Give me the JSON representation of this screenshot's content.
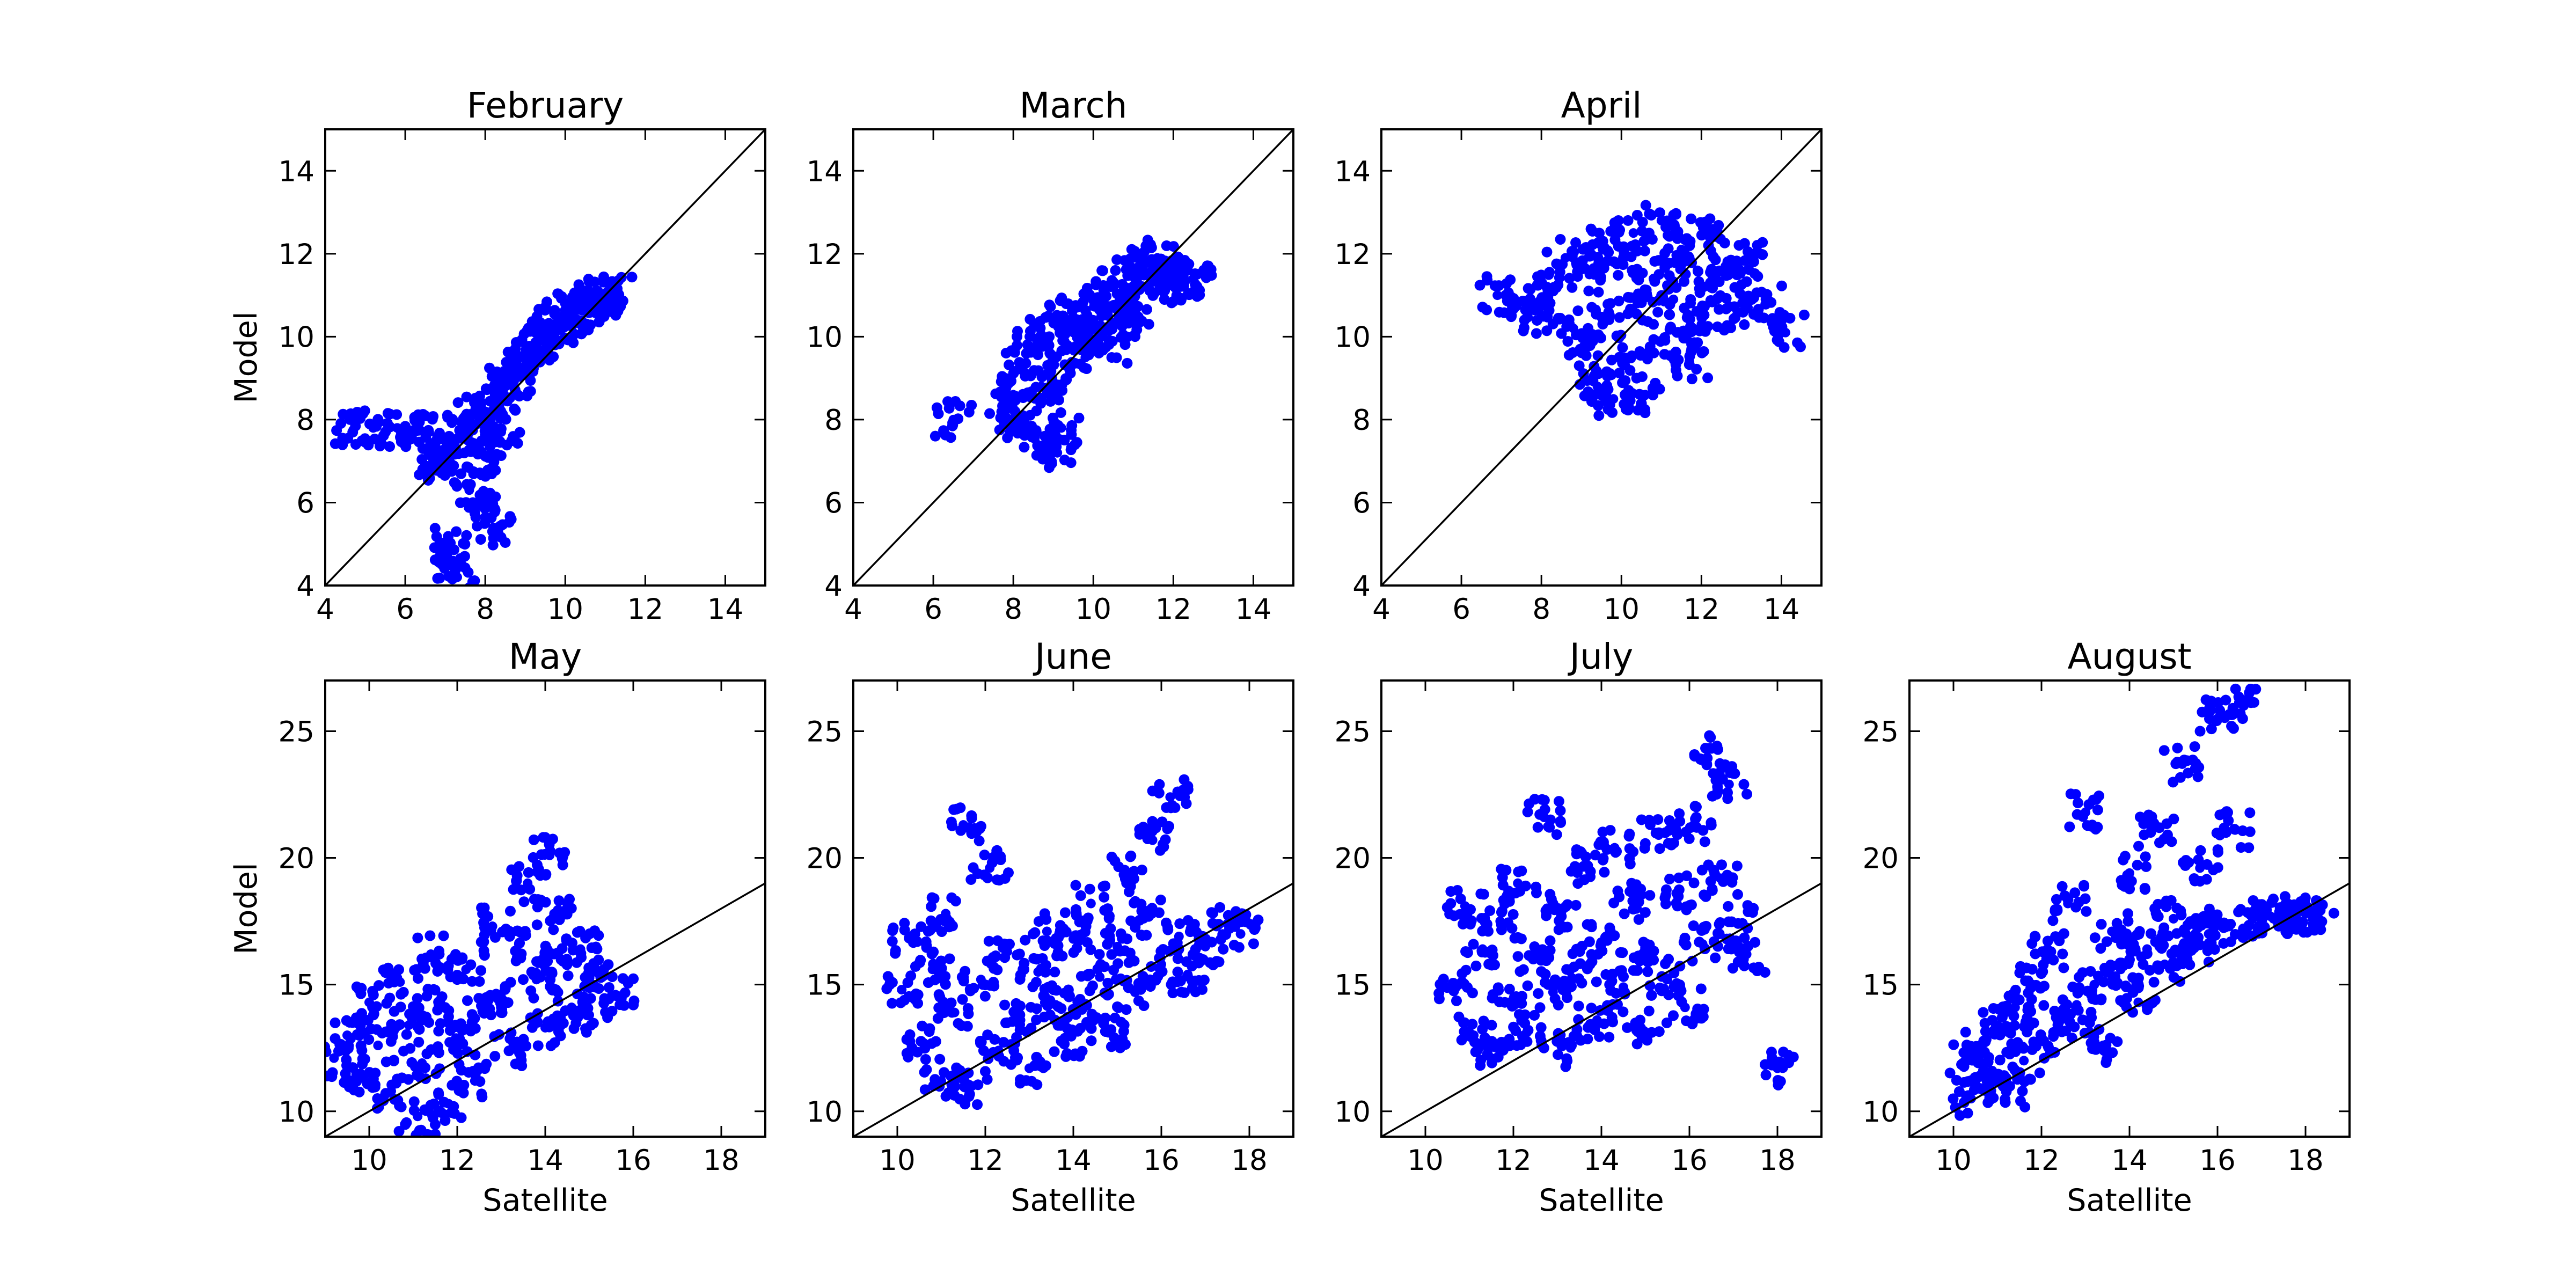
{
  "chart_data": [
    {
      "type": "scatter",
      "title": "February",
      "xlabel": "",
      "ylabel": "Model",
      "xlim": [
        4,
        15
      ],
      "ylim": [
        4,
        15
      ],
      "xticks": [
        "4",
        "6",
        "8",
        "10",
        "12",
        "14"
      ],
      "yticks": [
        "4",
        "6",
        "8",
        "10",
        "12",
        "14"
      ],
      "reference_line": "y = x",
      "marker_color": "#0000ff",
      "points": [
        [
          4.7,
          7.75
        ],
        [
          5.2,
          7.8
        ],
        [
          5.8,
          7.8
        ],
        [
          6.2,
          7.75
        ],
        [
          6.6,
          7.7
        ],
        [
          6.8,
          7.0
        ],
        [
          7.0,
          6.9
        ],
        [
          7.2,
          7.3
        ],
        [
          7.4,
          7.6
        ],
        [
          7.5,
          8.1
        ],
        [
          7.6,
          6.3
        ],
        [
          7.8,
          5.9
        ],
        [
          7.9,
          7.5
        ],
        [
          8.0,
          8.2
        ],
        [
          8.1,
          6.8
        ],
        [
          8.2,
          5.4
        ],
        [
          8.3,
          8.5
        ],
        [
          8.4,
          7.7
        ],
        [
          8.5,
          8.8
        ],
        [
          8.7,
          9.0
        ],
        [
          8.8,
          9.3
        ],
        [
          9.0,
          9.5
        ],
        [
          9.2,
          9.8
        ],
        [
          9.4,
          9.9
        ],
        [
          9.6,
          10.1
        ],
        [
          9.8,
          10.3
        ],
        [
          10.0,
          10.5
        ],
        [
          10.2,
          10.6
        ],
        [
          10.4,
          10.7
        ],
        [
          10.6,
          10.8
        ],
        [
          10.8,
          10.9
        ],
        [
          11.0,
          11.0
        ],
        [
          11.2,
          11.0
        ],
        [
          7.3,
          4.2
        ],
        [
          7.2,
          4.6
        ],
        [
          7.1,
          5.0
        ]
      ]
    },
    {
      "type": "scatter",
      "title": "March",
      "xlabel": "",
      "ylabel": "",
      "xlim": [
        4,
        15
      ],
      "ylim": [
        4,
        15
      ],
      "xticks": [
        "4",
        "6",
        "8",
        "10",
        "12",
        "14"
      ],
      "yticks": [
        "4",
        "6",
        "8",
        "10",
        "12",
        "14"
      ],
      "reference_line": "y = x",
      "marker_color": "#0000ff",
      "points": [
        [
          6.5,
          8.0
        ],
        [
          7.8,
          8.1
        ],
        [
          8.0,
          8.6
        ],
        [
          8.1,
          9.2
        ],
        [
          8.3,
          7.9
        ],
        [
          8.4,
          10.0
        ],
        [
          8.6,
          7.4
        ],
        [
          8.7,
          8.8
        ],
        [
          8.9,
          9.6
        ],
        [
          9.0,
          10.4
        ],
        [
          9.2,
          7.8
        ],
        [
          9.3,
          9.0
        ],
        [
          9.5,
          10.1
        ],
        [
          9.6,
          10.7
        ],
        [
          9.8,
          9.5
        ],
        [
          10.0,
          10.2
        ],
        [
          10.2,
          10.8
        ],
        [
          10.4,
          9.8
        ],
        [
          10.5,
          11.2
        ],
        [
          10.7,
          10.4
        ],
        [
          10.9,
          11.5
        ],
        [
          11.0,
          10.6
        ],
        [
          11.2,
          11.8
        ],
        [
          11.4,
          11.1
        ],
        [
          11.6,
          11.9
        ],
        [
          11.8,
          11.4
        ],
        [
          12.0,
          11.7
        ],
        [
          12.2,
          11.2
        ],
        [
          12.5,
          11.4
        ],
        [
          9.1,
          7.2
        ]
      ]
    },
    {
      "type": "scatter",
      "title": "April",
      "xlabel": "",
      "ylabel": "",
      "xlim": [
        4,
        15
      ],
      "ylim": [
        4,
        15
      ],
      "xticks": [
        "4",
        "6",
        "8",
        "10",
        "12",
        "14"
      ],
      "yticks": [
        "4",
        "6",
        "8",
        "10",
        "12",
        "14"
      ],
      "reference_line": "y = x",
      "marker_color": "#0000ff",
      "points": [
        [
          6.9,
          11.0
        ],
        [
          7.6,
          10.8
        ],
        [
          8.0,
          10.5
        ],
        [
          8.3,
          11.2
        ],
        [
          8.6,
          11.9
        ],
        [
          8.8,
          10.2
        ],
        [
          9.0,
          9.6
        ],
        [
          9.2,
          11.5
        ],
        [
          9.4,
          8.8
        ],
        [
          9.5,
          12.2
        ],
        [
          9.7,
          10.4
        ],
        [
          9.8,
          8.5
        ],
        [
          10.0,
          11.8
        ],
        [
          10.1,
          9.3
        ],
        [
          10.3,
          12.5
        ],
        [
          10.4,
          10.8
        ],
        [
          10.6,
          8.6
        ],
        [
          10.8,
          11.4
        ],
        [
          11.0,
          12.8
        ],
        [
          11.1,
          9.9
        ],
        [
          11.3,
          10.9
        ],
        [
          11.5,
          12.1
        ],
        [
          11.7,
          9.4
        ],
        [
          11.9,
          11.6
        ],
        [
          12.0,
          10.3
        ],
        [
          12.2,
          12.4
        ],
        [
          12.4,
          10.9
        ],
        [
          12.6,
          11.7
        ],
        [
          12.9,
          10.6
        ],
        [
          13.3,
          11.9
        ],
        [
          13.6,
          10.9
        ],
        [
          14.1,
          10.1
        ]
      ]
    },
    {
      "type": "scatter",
      "title": "May",
      "xlabel": "Satellite",
      "ylabel": "Model",
      "xlim": [
        9,
        19
      ],
      "ylim": [
        9,
        27
      ],
      "xticks": [
        "10",
        "12",
        "14",
        "16",
        "18"
      ],
      "yticks": [
        "10",
        "15",
        "20",
        "25"
      ],
      "reference_line": "y = x",
      "marker_color": "#0000ff",
      "points": [
        [
          9.2,
          12.1
        ],
        [
          9.5,
          13.0
        ],
        [
          9.8,
          11.5
        ],
        [
          10.0,
          14.3
        ],
        [
          10.2,
          12.6
        ],
        [
          10.5,
          10.8
        ],
        [
          10.7,
          15.1
        ],
        [
          10.9,
          13.4
        ],
        [
          11.1,
          9.8
        ],
        [
          11.2,
          11.9
        ],
        [
          11.4,
          16.2
        ],
        [
          11.6,
          14.1
        ],
        [
          11.8,
          10.3
        ],
        [
          12.0,
          12.8
        ],
        [
          12.2,
          15.6
        ],
        [
          12.4,
          11.2
        ],
        [
          12.6,
          13.9
        ],
        [
          12.8,
          17.3
        ],
        [
          13.0,
          14.5
        ],
        [
          13.2,
          12.4
        ],
        [
          13.4,
          16.6
        ],
        [
          13.6,
          19.0
        ],
        [
          13.8,
          15.2
        ],
        [
          14.0,
          13.3
        ],
        [
          14.2,
          17.8
        ],
        [
          14.4,
          15.9
        ],
        [
          14.6,
          14.1
        ],
        [
          14.8,
          16.4
        ],
        [
          15.0,
          13.8
        ],
        [
          15.3,
          15.3
        ],
        [
          15.6,
          14.6
        ],
        [
          14.1,
          20.1
        ]
      ]
    },
    {
      "type": "scatter",
      "title": "June",
      "xlabel": "Satellite",
      "ylabel": "",
      "xlim": [
        9,
        19
      ],
      "ylim": [
        9,
        27
      ],
      "xticks": [
        "10",
        "12",
        "14",
        "16",
        "18"
      ],
      "yticks": [
        "10",
        "15",
        "20",
        "25"
      ],
      "reference_line": "y = x",
      "marker_color": "#0000ff",
      "points": [
        [
          10.1,
          14.8
        ],
        [
          10.3,
          16.9
        ],
        [
          10.6,
          12.7
        ],
        [
          10.8,
          15.6
        ],
        [
          11.0,
          11.2
        ],
        [
          11.1,
          17.8
        ],
        [
          11.3,
          13.9
        ],
        [
          11.5,
          21.3
        ],
        [
          11.7,
          11.0
        ],
        [
          11.9,
          15.2
        ],
        [
          12.1,
          19.6
        ],
        [
          12.3,
          12.4
        ],
        [
          12.5,
          16.3
        ],
        [
          12.8,
          13.6
        ],
        [
          13.0,
          11.7
        ],
        [
          13.2,
          15.5
        ],
        [
          13.4,
          17.1
        ],
        [
          13.6,
          14.2
        ],
        [
          13.8,
          12.9
        ],
        [
          14.0,
          16.8
        ],
        [
          14.2,
          14.0
        ],
        [
          14.4,
          18.2
        ],
        [
          14.6,
          15.3
        ],
        [
          14.8,
          13.1
        ],
        [
          15.0,
          16.5
        ],
        [
          15.2,
          19.4
        ],
        [
          15.4,
          14.7
        ],
        [
          15.6,
          17.6
        ],
        [
          15.8,
          20.7
        ],
        [
          16.0,
          15.8
        ],
        [
          16.2,
          22.4
        ],
        [
          16.4,
          16.9
        ],
        [
          16.6,
          15.4
        ],
        [
          17.0,
          16.5
        ],
        [
          17.5,
          17.4
        ],
        [
          17.8,
          17.0
        ]
      ]
    },
    {
      "type": "scatter",
      "title": "July",
      "xlabel": "Satellite",
      "ylabel": "",
      "xlim": [
        9,
        19
      ],
      "ylim": [
        9,
        27
      ],
      "xticks": [
        "10",
        "12",
        "14",
        "16",
        "18"
      ],
      "yticks": [
        "10",
        "15",
        "20",
        "25"
      ],
      "reference_line": "y = x",
      "marker_color": "#0000ff",
      "points": [
        [
          10.7,
          14.9
        ],
        [
          10.9,
          18.1
        ],
        [
          11.1,
          13.0
        ],
        [
          11.3,
          16.4
        ],
        [
          11.5,
          12.1
        ],
        [
          11.7,
          17.5
        ],
        [
          11.9,
          14.3
        ],
        [
          12.1,
          19.0
        ],
        [
          12.3,
          13.1
        ],
        [
          12.5,
          16.2
        ],
        [
          12.7,
          21.6
        ],
        [
          12.9,
          14.7
        ],
        [
          13.1,
          17.9
        ],
        [
          13.3,
          12.5
        ],
        [
          13.5,
          15.8
        ],
        [
          13.7,
          19.7
        ],
        [
          13.9,
          13.6
        ],
        [
          14.1,
          16.9
        ],
        [
          14.3,
          20.4
        ],
        [
          14.5,
          14.9
        ],
        [
          14.7,
          18.3
        ],
        [
          14.9,
          13.3
        ],
        [
          15.1,
          16.1
        ],
        [
          15.3,
          20.9
        ],
        [
          15.5,
          15.2
        ],
        [
          15.7,
          18.6
        ],
        [
          15.9,
          14.1
        ],
        [
          16.1,
          21.3
        ],
        [
          16.3,
          16.6
        ],
        [
          16.5,
          24.3
        ],
        [
          16.7,
          19.2
        ],
        [
          16.9,
          22.9
        ],
        [
          17.1,
          17.4
        ],
        [
          17.3,
          16.2
        ],
        [
          18.0,
          11.7
        ]
      ]
    },
    {
      "type": "scatter",
      "title": "August",
      "xlabel": "Satellite",
      "ylabel": "",
      "xlim": [
        9,
        19
      ],
      "ylim": [
        9,
        27
      ],
      "xticks": [
        "10",
        "12",
        "14",
        "16",
        "18"
      ],
      "yticks": [
        "10",
        "15",
        "20",
        "25"
      ],
      "reference_line": "y = x",
      "marker_color": "#0000ff",
      "points": [
        [
          10.2,
          11.9
        ],
        [
          10.4,
          10.5
        ],
        [
          10.6,
          12.6
        ],
        [
          10.8,
          11.3
        ],
        [
          11.0,
          13.4
        ],
        [
          11.2,
          10.8
        ],
        [
          11.4,
          14.1
        ],
        [
          11.6,
          12.0
        ],
        [
          11.8,
          15.0
        ],
        [
          12.0,
          12.8
        ],
        [
          12.2,
          16.3
        ],
        [
          12.4,
          13.5
        ],
        [
          12.6,
          18.2
        ],
        [
          12.8,
          14.2
        ],
        [
          13.0,
          21.8
        ],
        [
          13.2,
          15.0
        ],
        [
          13.4,
          12.6
        ],
        [
          13.6,
          17.1
        ],
        [
          13.8,
          15.6
        ],
        [
          14.0,
          19.4
        ],
        [
          14.2,
          14.3
        ],
        [
          14.4,
          16.4
        ],
        [
          14.6,
          21.2
        ],
        [
          14.8,
          15.8
        ],
        [
          15.0,
          17.6
        ],
        [
          15.2,
          23.7
        ],
        [
          15.4,
          16.5
        ],
        [
          15.6,
          19.6
        ],
        [
          15.8,
          17.0
        ],
        [
          16.0,
          25.5
        ],
        [
          16.2,
          17.3
        ],
        [
          16.4,
          21.1
        ],
        [
          16.6,
          26.0
        ],
        [
          16.8,
          17.6
        ],
        [
          17.2,
          17.7
        ],
        [
          17.6,
          17.8
        ],
        [
          18.0,
          17.8
        ],
        [
          18.3,
          17.6
        ]
      ]
    }
  ]
}
